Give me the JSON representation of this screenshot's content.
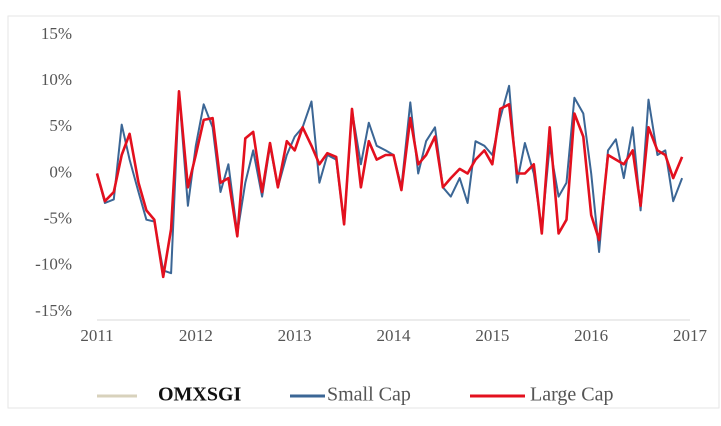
{
  "chart_data": {
    "type": "line",
    "x": [
      2011,
      2011.08,
      2011.17,
      2011.25,
      2011.33,
      2011.42,
      2011.5,
      2011.58,
      2011.67,
      2011.75,
      2011.83,
      2011.92,
      2012,
      2012.08,
      2012.17,
      2012.25,
      2012.33,
      2012.42,
      2012.5,
      2012.58,
      2012.67,
      2012.75,
      2012.83,
      2012.92,
      2013,
      2013.08,
      2013.17,
      2013.25,
      2013.33,
      2013.42,
      2013.5,
      2013.58,
      2013.67,
      2013.75,
      2013.83,
      2013.92,
      2014,
      2014.08,
      2014.17,
      2014.25,
      2014.33,
      2014.42,
      2014.5,
      2014.58,
      2014.67,
      2014.75,
      2014.83,
      2014.92,
      2015,
      2015.08,
      2015.17,
      2015.25,
      2015.33,
      2015.42,
      2015.5,
      2015.58,
      2015.67,
      2015.75,
      2015.83,
      2015.92,
      2016,
      2016.08,
      2016.17,
      2016.25,
      2016.33,
      2016.42,
      2016.5,
      2016.58,
      2016.67,
      2016.75,
      2016.83,
      2016.92
    ],
    "series": [
      {
        "name": "OMXSGI",
        "color": "#d8d2bc",
        "values": [
          null,
          null,
          null,
          null,
          null,
          null,
          null,
          null,
          null,
          null,
          null,
          null,
          null,
          null,
          null,
          null,
          null,
          null,
          null,
          null,
          null,
          null,
          null,
          null,
          null,
          null,
          null,
          null,
          null,
          null,
          null,
          null,
          null,
          null,
          null,
          null,
          null,
          null,
          null,
          null,
          null,
          null,
          null,
          null,
          null,
          null,
          null,
          null,
          null,
          null,
          null,
          null,
          null,
          null,
          null,
          null,
          null,
          null,
          null,
          null,
          null,
          null,
          null,
          null,
          null,
          null,
          null,
          null,
          null,
          null,
          null,
          null
        ]
      },
      {
        "name": "Small Cap",
        "color": "#3b6695",
        "values": [
          0,
          -3.2,
          -2.8,
          5.3,
          1.5,
          -2,
          -5,
          -5.2,
          -10.5,
          -10.8,
          8.8,
          -3.5,
          3,
          7.5,
          5,
          -2,
          1,
          -6.5,
          -1,
          2.5,
          -2.5,
          3,
          -1.5,
          2,
          4,
          5,
          7.8,
          -1,
          2,
          1.5,
          -5.5,
          6.8,
          1,
          5.5,
          3,
          2.5,
          2,
          -1.5,
          7.7,
          0,
          3.5,
          5,
          -1.5,
          -2.5,
          -0.5,
          -3.2,
          3.5,
          3,
          2,
          6,
          9.5,
          -1,
          3.3,
          0,
          -6,
          3,
          -2.5,
          -1,
          8.2,
          6.5,
          0,
          -8.5,
          2.5,
          3.7,
          -0.5,
          5,
          -4,
          8,
          2,
          2.5,
          -3,
          -0.5
        ]
      },
      {
        "name": "Large Cap",
        "color": "#e3101e",
        "values": [
          0,
          -3,
          -2,
          2,
          4.3,
          -1,
          -4,
          -5,
          -11.2,
          -6,
          8.9,
          -1.5,
          2,
          5.8,
          6,
          -1,
          -0.5,
          -6.8,
          3.8,
          4.5,
          -2,
          3.3,
          -1.5,
          3.5,
          2.5,
          5,
          3,
          1,
          2.2,
          1.8,
          -5.5,
          7,
          -1.5,
          3.5,
          1.5,
          2,
          2,
          -1.8,
          6,
          1,
          2,
          4,
          -1.5,
          -0.5,
          0.5,
          0,
          1.5,
          2.5,
          1,
          7,
          7.5,
          0,
          0,
          1,
          -6.5,
          5,
          -6.5,
          -5,
          6.5,
          4,
          -4.5,
          -7.2,
          2,
          1.5,
          1,
          2.5,
          -3.5,
          5,
          2.5,
          2,
          -0.5,
          1.8
        ]
      }
    ],
    "xlim": [
      2011,
      2017
    ],
    "xticks": [
      2011,
      2012,
      2013,
      2014,
      2015,
      2016,
      2017
    ],
    "ylim": [
      -15,
      15
    ],
    "yticks": [
      {
        "value": -15,
        "label": "-15%"
      },
      {
        "value": -10,
        "label": "-10%"
      },
      {
        "value": -5,
        "label": "-5%"
      },
      {
        "value": 0,
        "label": "0%"
      },
      {
        "value": 5,
        "label": "5%"
      },
      {
        "value": 10,
        "label": "10%"
      },
      {
        "value": 15,
        "label": "15%"
      }
    ]
  }
}
